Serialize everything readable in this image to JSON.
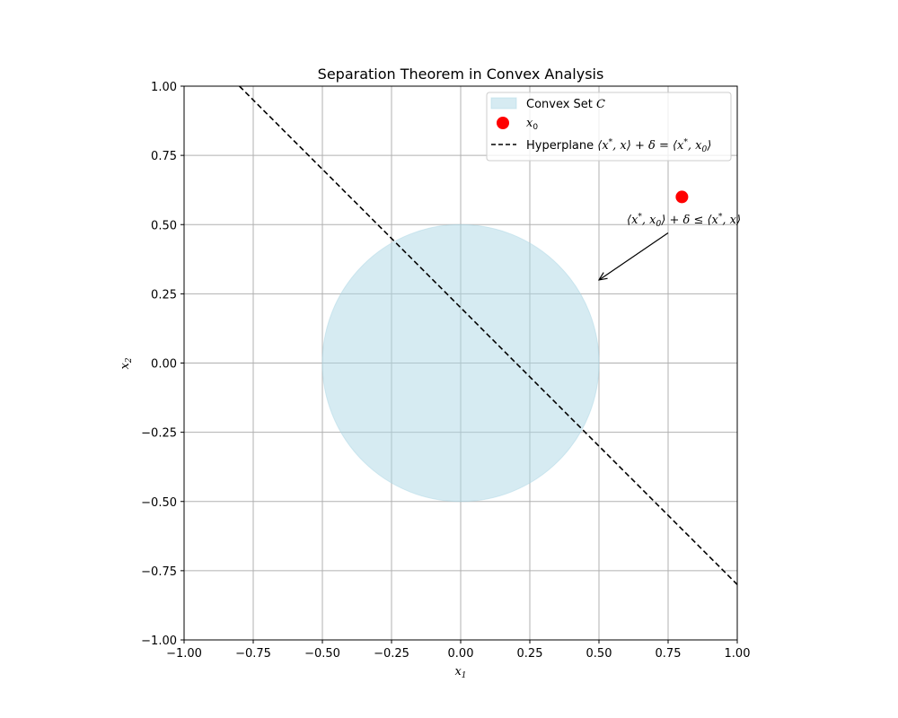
{
  "chart_data": {
    "type": "line",
    "title": "Separation Theorem in Convex Analysis",
    "xlabel": "x1",
    "ylabel": "x2",
    "xlim": [
      -1.0,
      1.0
    ],
    "ylim": [
      -1.0,
      1.0
    ],
    "grid": true,
    "xticks": [
      -1.0,
      -0.75,
      -0.5,
      -0.25,
      0.0,
      0.25,
      0.5,
      0.75,
      1.0
    ],
    "yticks": [
      -1.0,
      -0.75,
      -0.5,
      -0.25,
      0.0,
      0.25,
      0.5,
      0.75,
      1.0
    ],
    "xtick_labels": [
      "−1.00",
      "−0.75",
      "−0.50",
      "−0.25",
      "0.00",
      "0.25",
      "0.50",
      "0.75",
      "1.00"
    ],
    "ytick_labels": [
      "−1.00",
      "−0.75",
      "−0.50",
      "−0.25",
      "0.00",
      "0.25",
      "0.50",
      "0.75",
      "1.00"
    ],
    "convex_set": {
      "name": "Convex Set C",
      "shape": "circle",
      "center": [
        0.0,
        0.0
      ],
      "radius": 0.5,
      "color": "#add8e6",
      "alpha": 0.5
    },
    "point": {
      "name": "x0",
      "x": 0.8,
      "y": 0.6,
      "color": "#ff0000"
    },
    "hyperplane": {
      "name": "Hyperplane ⟨x*, x⟩ + δ = ⟨x*, x0⟩",
      "style": "dashed",
      "color": "#000000",
      "x": [
        -0.8,
        1.0
      ],
      "y": [
        1.0,
        -0.8
      ]
    },
    "annotation": {
      "text": "⟨x*, x0⟩ + δ ≤ ⟨x*, x⟩",
      "text_x": 0.6,
      "text_y": 0.5,
      "arrow_from": [
        0.75,
        0.47
      ],
      "arrow_to": [
        0.5,
        0.3
      ]
    },
    "legend_position": "upper-right"
  }
}
